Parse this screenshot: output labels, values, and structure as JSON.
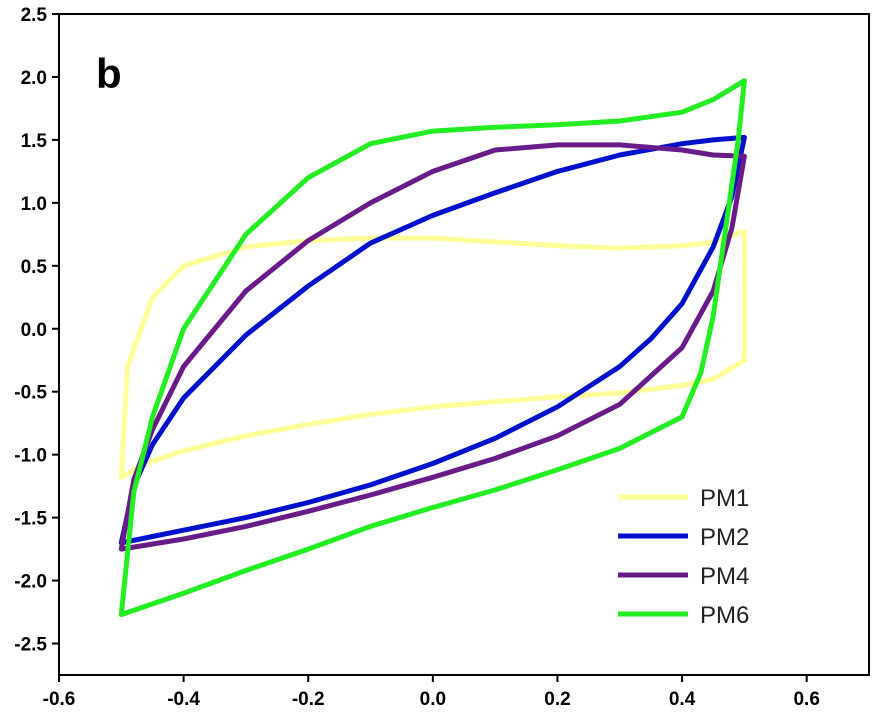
{
  "chart_data": {
    "type": "line",
    "panel_label": "b",
    "title": "",
    "xlabel": "",
    "ylabel": "",
    "xlim": [
      -0.6,
      0.7
    ],
    "ylim": [
      -2.75,
      2.5
    ],
    "xticks": [
      -0.6,
      -0.4,
      -0.2,
      0.0,
      0.2,
      0.4,
      0.6
    ],
    "xtick_labels": [
      "-0.6",
      "-0.4",
      "-0.2",
      "0.0",
      "0.2",
      "0.4",
      "0.6"
    ],
    "yticks": [
      -2.5,
      -2.0,
      -1.5,
      -1.0,
      -0.5,
      0.0,
      0.5,
      1.0,
      1.5,
      2.0,
      2.5
    ],
    "ytick_labels": [
      "-2.5",
      "-2.0",
      "-1.5",
      "-1.0",
      "-0.5",
      "0.0",
      "0.5",
      "1.0",
      "1.5",
      "2.0",
      "2.5"
    ],
    "grid": false,
    "legend_position": "bottom-right",
    "series": [
      {
        "name": "PM1",
        "color": "#FFFF99",
        "x": [
          -0.5,
          -0.48,
          -0.45,
          -0.4,
          -0.3,
          -0.2,
          -0.1,
          0.0,
          0.1,
          0.2,
          0.3,
          0.4,
          0.45,
          0.5,
          0.5,
          0.49,
          0.47,
          0.44,
          0.4,
          0.3,
          0.2,
          0.1,
          0.0,
          -0.1,
          -0.2,
          -0.3,
          -0.4,
          -0.45,
          -0.49,
          -0.5
        ],
        "y": [
          -1.18,
          -1.12,
          -1.05,
          -0.97,
          -0.85,
          -0.76,
          -0.68,
          -0.62,
          -0.58,
          -0.54,
          -0.51,
          -0.45,
          -0.4,
          -0.25,
          0.77,
          0.76,
          0.72,
          0.68,
          0.66,
          0.64,
          0.66,
          0.69,
          0.72,
          0.72,
          0.7,
          0.65,
          0.5,
          0.25,
          -0.3,
          -1.18
        ]
      },
      {
        "name": "PM2",
        "color": "#0011CC",
        "x": [
          -0.5,
          -0.45,
          -0.4,
          -0.3,
          -0.2,
          -0.1,
          0.0,
          0.1,
          0.2,
          0.3,
          0.35,
          0.4,
          0.45,
          0.48,
          0.5,
          0.5,
          0.45,
          0.4,
          0.3,
          0.2,
          0.1,
          0.0,
          -0.1,
          -0.2,
          -0.3,
          -0.4,
          -0.45,
          -0.48,
          -0.5
        ],
        "y": [
          -1.7,
          -1.65,
          -1.6,
          -1.5,
          -1.38,
          -1.24,
          -1.07,
          -0.87,
          -0.62,
          -0.3,
          -0.08,
          0.2,
          0.65,
          1.05,
          1.52,
          1.52,
          1.5,
          1.47,
          1.38,
          1.25,
          1.08,
          0.9,
          0.68,
          0.34,
          -0.05,
          -0.55,
          -0.92,
          -1.25,
          -1.7
        ]
      },
      {
        "name": "PM4",
        "color": "#6A1B8A",
        "x": [
          -0.5,
          -0.4,
          -0.3,
          -0.2,
          -0.1,
          0.0,
          0.1,
          0.2,
          0.3,
          0.4,
          0.45,
          0.48,
          0.5,
          0.5,
          0.45,
          0.4,
          0.3,
          0.2,
          0.1,
          0.0,
          -0.1,
          -0.2,
          -0.3,
          -0.4,
          -0.45,
          -0.48,
          -0.5
        ],
        "y": [
          -1.75,
          -1.67,
          -1.57,
          -1.45,
          -1.32,
          -1.18,
          -1.03,
          -0.85,
          -0.6,
          -0.15,
          0.3,
          0.8,
          1.37,
          1.37,
          1.38,
          1.42,
          1.46,
          1.46,
          1.42,
          1.25,
          1.0,
          0.7,
          0.3,
          -0.3,
          -0.8,
          -1.2,
          -1.75
        ]
      },
      {
        "name": "PM6",
        "color": "#22EE22",
        "x": [
          -0.5,
          -0.4,
          -0.3,
          -0.2,
          -0.1,
          0.0,
          0.1,
          0.2,
          0.3,
          0.4,
          0.43,
          0.45,
          0.47,
          0.49,
          0.5,
          0.5,
          0.45,
          0.4,
          0.3,
          0.2,
          0.1,
          0.0,
          -0.1,
          -0.2,
          -0.3,
          -0.4,
          -0.45,
          -0.48,
          -0.5
        ],
        "y": [
          -2.27,
          -2.1,
          -1.92,
          -1.75,
          -1.57,
          -1.42,
          -1.28,
          -1.12,
          -0.95,
          -0.7,
          -0.35,
          0.1,
          0.8,
          1.5,
          1.97,
          1.97,
          1.82,
          1.72,
          1.65,
          1.62,
          1.6,
          1.57,
          1.47,
          1.2,
          0.75,
          0.0,
          -0.7,
          -1.3,
          -2.27
        ]
      }
    ]
  }
}
